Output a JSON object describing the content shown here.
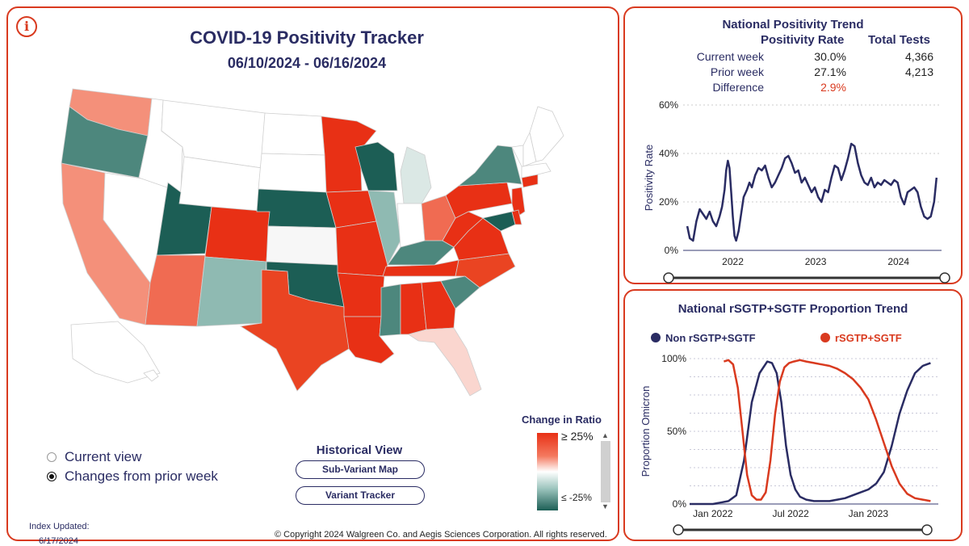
{
  "main": {
    "title": "COVID-19 Positivity Tracker",
    "date_range": "06/10/2024 - 06/16/2024",
    "info_icon": "info-icon",
    "views": [
      {
        "label": "Current view",
        "selected": false
      },
      {
        "label": "Changes from prior week",
        "selected": true
      }
    ],
    "historical": {
      "title": "Historical View",
      "buttons": [
        "Sub-Variant Map",
        "Variant Tracker"
      ]
    },
    "legend": {
      "title": "Change in Ratio",
      "top_label": "≥ 25%",
      "bottom_label": "≤ -25%"
    },
    "index_label": "Index Updated:",
    "index_date": "6/17/2024",
    "copyright": "© Copyright 2024 Walgreen Co. and Aegis Sciences Corporation. All rights reserved."
  },
  "colors": {
    "accent_red": "#d93a1f",
    "navy": "#2a2c63",
    "increase_strong": "#e83015",
    "increase_mid": "#ea4422",
    "increase_light": "#f4907a",
    "increase_pale": "#fad6cf",
    "neutral": "#ffffff",
    "decrease_light": "#a9c9c3",
    "decrease_mid": "#4d877d",
    "decrease_strong": "#1c5e55"
  },
  "positivity": {
    "title": "National Positivity Trend",
    "headers": [
      "Positivity Rate",
      "Total Tests"
    ],
    "rows": [
      {
        "label": "Current week",
        "rate": "30.0%",
        "tests": "4,366"
      },
      {
        "label": "Prior week",
        "rate": "27.1%",
        "tests": "4,213"
      },
      {
        "label": "Difference",
        "rate": "2.9%",
        "tests": ""
      }
    ]
  },
  "sgtf": {
    "title": "National rSGTP+SGTF Proportion Trend"
  },
  "chart_data": [
    {
      "type": "line",
      "title": "National Positivity Trend",
      "ylabel": "Positivity Rate",
      "xlabel": "",
      "ylim": [
        0,
        60
      ],
      "yticks": [
        "0%",
        "20%",
        "40%",
        "60%"
      ],
      "xticks": [
        "2022",
        "2023",
        "2024"
      ],
      "grid": true,
      "series": [
        {
          "name": "",
          "color": "#2a2c63",
          "x": [
            2021.45,
            2021.48,
            2021.52,
            2021.56,
            2021.6,
            2021.64,
            2021.68,
            2021.72,
            2021.76,
            2021.8,
            2021.84,
            2021.87,
            2021.9,
            2021.92,
            2021.94,
            2021.96,
            2021.98,
            2022.0,
            2022.02,
            2022.04,
            2022.07,
            2022.1,
            2022.13,
            2022.17,
            2022.2,
            2022.23,
            2022.27,
            2022.31,
            2022.35,
            2022.39,
            2022.43,
            2022.47,
            2022.51,
            2022.55,
            2022.59,
            2022.63,
            2022.67,
            2022.71,
            2022.75,
            2022.79,
            2022.83,
            2022.87,
            2022.91,
            2022.95,
            2022.99,
            2023.03,
            2023.07,
            2023.11,
            2023.15,
            2023.19,
            2023.23,
            2023.27,
            2023.31,
            2023.35,
            2023.39,
            2023.43,
            2023.47,
            2023.51,
            2023.55,
            2023.59,
            2023.63,
            2023.67,
            2023.71,
            2023.75,
            2023.79,
            2023.83,
            2023.87,
            2023.91,
            2023.95,
            2023.99,
            2024.03,
            2024.07,
            2024.11,
            2024.15,
            2024.19,
            2024.23,
            2024.27,
            2024.31,
            2024.35,
            2024.39,
            2024.43,
            2024.46
          ],
          "y": [
            10,
            5,
            4,
            12,
            17,
            15,
            13,
            16,
            12,
            10,
            14,
            18,
            25,
            33,
            37,
            34,
            24,
            14,
            6,
            4,
            8,
            15,
            22,
            25,
            28,
            26,
            31,
            34,
            33,
            35,
            30,
            26,
            28,
            31,
            34,
            38,
            39,
            36,
            32,
            33,
            28,
            30,
            27,
            24,
            26,
            22,
            20,
            25,
            24,
            30,
            35,
            34,
            29,
            33,
            38,
            44,
            43,
            36,
            31,
            28,
            27,
            30,
            26,
            28,
            27,
            29,
            28,
            27,
            29,
            28,
            22,
            19,
            24,
            25,
            26,
            24,
            18,
            14,
            13,
            14,
            20,
            30
          ]
        }
      ]
    },
    {
      "type": "line",
      "title": "National rSGTP+SGTF Proportion Trend",
      "ylabel": "Proportion Omicron",
      "xlabel": "",
      "ylim": [
        0,
        100
      ],
      "yticks": [
        "0%",
        "50%",
        "100%"
      ],
      "xticks": [
        "Jan 2022",
        "Jul 2022",
        "Jan 2023"
      ],
      "legend": "top",
      "grid": true,
      "series": [
        {
          "name": "Non rSGTP+SGTF",
          "color": "#2a2c63",
          "x": [
            2021.85,
            2021.9,
            2021.95,
            2022.0,
            2022.05,
            2022.1,
            2022.15,
            2022.2,
            2022.25,
            2022.3,
            2022.35,
            2022.38,
            2022.41,
            2022.44,
            2022.47,
            2022.5,
            2022.53,
            2022.56,
            2022.6,
            2022.65,
            2022.7,
            2022.75,
            2022.8,
            2022.85,
            2022.9,
            2022.95,
            2023.0,
            2023.05,
            2023.1,
            2023.15,
            2023.2,
            2023.25,
            2023.3,
            2023.35,
            2023.4
          ],
          "y": [
            0,
            0,
            0,
            0,
            1,
            2,
            6,
            30,
            70,
            90,
            98,
            97,
            90,
            70,
            40,
            20,
            10,
            5,
            3,
            2,
            2,
            2,
            3,
            4,
            6,
            8,
            10,
            14,
            22,
            40,
            62,
            78,
            90,
            95,
            97
          ]
        },
        {
          "name": "rSGTP+SGTF",
          "color": "#d93a1f",
          "x": [
            2022.07,
            2022.1,
            2022.13,
            2022.16,
            2022.19,
            2022.22,
            2022.25,
            2022.28,
            2022.31,
            2022.34,
            2022.37,
            2022.4,
            2022.43,
            2022.46,
            2022.49,
            2022.52,
            2022.56,
            2022.6,
            2022.65,
            2022.7,
            2022.75,
            2022.8,
            2022.85,
            2022.9,
            2022.95,
            2023.0,
            2023.05,
            2023.1,
            2023.15,
            2023.2,
            2023.25,
            2023.3,
            2023.35,
            2023.4
          ],
          "y": [
            98,
            99,
            96,
            80,
            50,
            20,
            6,
            3,
            3,
            8,
            30,
            62,
            84,
            94,
            97,
            98,
            99,
            98,
            97,
            96,
            95,
            93,
            90,
            86,
            80,
            72,
            58,
            42,
            26,
            14,
            7,
            4,
            3,
            2
          ]
        }
      ]
    }
  ]
}
